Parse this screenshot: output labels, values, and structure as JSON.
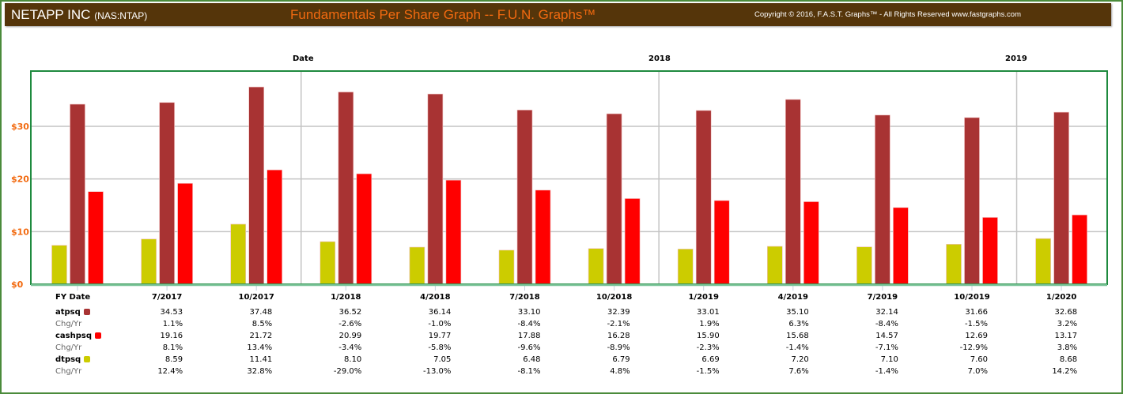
{
  "header": {
    "company": "NETAPP INC",
    "ticker": "(NAS:NTAP)",
    "title": "Fundamentals Per Share Graph -- F.U.N. Graphs™",
    "copyright": "Copyright © 2016, F.A.S.T. Graphs™ - All Rights Reserved www.fastgraphs.com"
  },
  "colors": {
    "atpsq": "#a83333",
    "cashpsq": "#ff0000",
    "dtpsq": "#cccc00",
    "axis": "#f26a10",
    "border": "#1e8a3e"
  },
  "chart_data": {
    "type": "bar",
    "top_labels": [
      "Date",
      "2018",
      "2019"
    ],
    "categories": [
      "",
      "7/2017",
      "10/2017",
      "1/2018",
      "4/2018",
      "7/2018",
      "10/2018",
      "1/2019",
      "4/2019",
      "7/2019",
      "10/2019",
      "1/2020"
    ],
    "ylim": [
      0,
      40.5
    ],
    "yticks": [
      {
        "v": 0,
        "label": "$0"
      },
      {
        "v": 10,
        "label": "$10"
      },
      {
        "v": 20,
        "label": "$20"
      },
      {
        "v": 30,
        "label": "$30"
      }
    ],
    "year_dividers_after_index": [
      2,
      6,
      10
    ],
    "series": [
      {
        "name": "dtpsq",
        "values": [
          7.4,
          8.59,
          11.41,
          8.1,
          7.05,
          6.48,
          6.79,
          6.69,
          7.2,
          7.1,
          7.6,
          8.68
        ]
      },
      {
        "name": "atpsq",
        "values": [
          34.2,
          34.53,
          37.48,
          36.52,
          36.14,
          33.1,
          32.39,
          33.01,
          35.1,
          32.14,
          31.66,
          32.68
        ]
      },
      {
        "name": "cashpsq",
        "values": [
          17.6,
          19.16,
          21.72,
          20.99,
          19.77,
          17.88,
          16.28,
          15.9,
          15.68,
          14.57,
          12.69,
          13.17
        ]
      }
    ]
  },
  "table": {
    "header_label": "FY Date",
    "dates": [
      "7/2017",
      "10/2017",
      "1/2018",
      "4/2018",
      "7/2018",
      "10/2018",
      "1/2019",
      "4/2019",
      "7/2019",
      "10/2019",
      "1/2020"
    ],
    "rows": [
      {
        "label": "atpsq",
        "kind": "series",
        "color": "#a83333",
        "values": [
          "34.53",
          "37.48",
          "36.52",
          "36.14",
          "33.10",
          "32.39",
          "33.01",
          "35.10",
          "32.14",
          "31.66",
          "32.68"
        ]
      },
      {
        "label": "Chg/Yr",
        "kind": "chg",
        "values": [
          "1.1%",
          "8.5%",
          "-2.6%",
          "-1.0%",
          "-8.4%",
          "-2.1%",
          "1.9%",
          "6.3%",
          "-8.4%",
          "-1.5%",
          "3.2%"
        ]
      },
      {
        "label": "cashpsq",
        "kind": "series",
        "color": "#ff0000",
        "values": [
          "19.16",
          "21.72",
          "20.99",
          "19.77",
          "17.88",
          "16.28",
          "15.90",
          "15.68",
          "14.57",
          "12.69",
          "13.17"
        ]
      },
      {
        "label": "Chg/Yr",
        "kind": "chg",
        "values": [
          "8.1%",
          "13.4%",
          "-3.4%",
          "-5.8%",
          "-9.6%",
          "-8.9%",
          "-2.3%",
          "-1.4%",
          "-7.1%",
          "-12.9%",
          "3.8%"
        ]
      },
      {
        "label": "dtpsq",
        "kind": "series",
        "color": "#cccc00",
        "values": [
          "8.59",
          "11.41",
          "8.10",
          "7.05",
          "6.48",
          "6.79",
          "6.69",
          "7.20",
          "7.10",
          "7.60",
          "8.68"
        ]
      },
      {
        "label": "Chg/Yr",
        "kind": "chg",
        "values": [
          "12.4%",
          "32.8%",
          "-29.0%",
          "-13.0%",
          "-8.1%",
          "4.8%",
          "-1.5%",
          "7.6%",
          "-1.4%",
          "7.0%",
          "14.2%"
        ]
      }
    ]
  }
}
